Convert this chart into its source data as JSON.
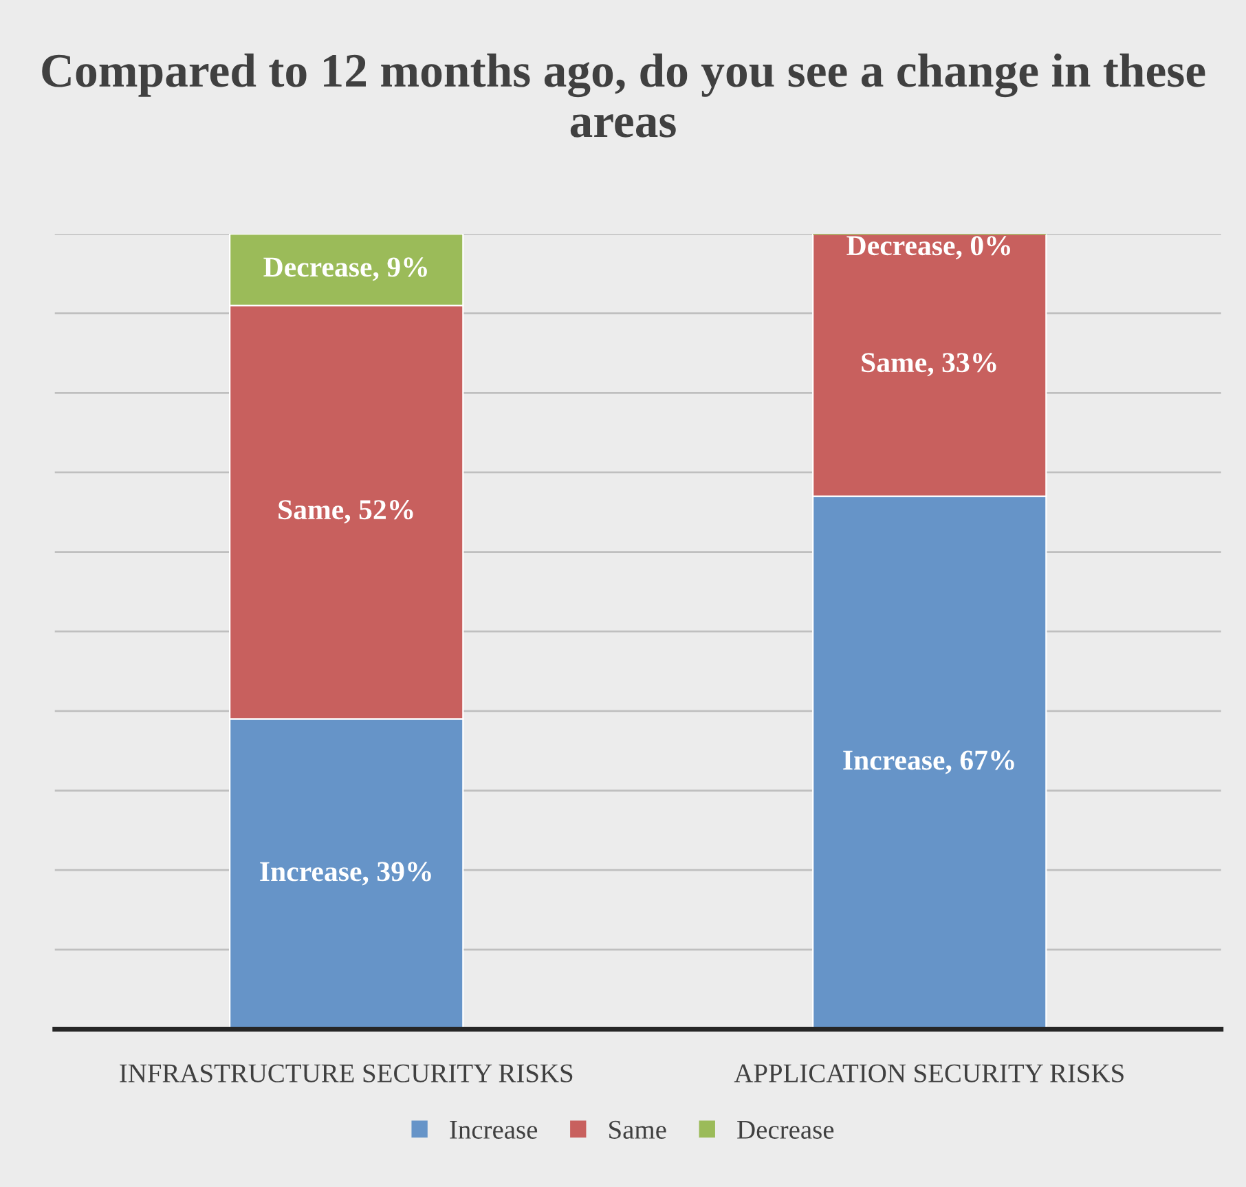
{
  "chart_data": {
    "type": "bar",
    "stacked": true,
    "title": "Compared to 12 months ago, do you see a change in these areas",
    "categories": [
      "INFRASTRUCTURE SECURITY RISKS",
      "APPLICATION SECURITY RISKS"
    ],
    "series": [
      {
        "name": "Increase",
        "color": "#6694c8",
        "values": [
          39,
          67
        ],
        "value_labels": [
          "Increase, 39%",
          "Increase, 67%"
        ]
      },
      {
        "name": "Same",
        "color": "#c8605e",
        "values": [
          52,
          33
        ],
        "value_labels": [
          "Same, 52%",
          "Same, 33%"
        ]
      },
      {
        "name": "Decrease",
        "color": "#9bbb59",
        "values": [
          9,
          0
        ],
        "value_labels": [
          "Decrease, 9%",
          "Decrease, 0%"
        ]
      }
    ],
    "ylim": [
      0,
      100
    ],
    "yticks": [
      {
        "value": 0,
        "label": null
      },
      {
        "value": 10,
        "label": null
      },
      {
        "value": 20,
        "label": null
      },
      {
        "value": 30,
        "label": null
      },
      {
        "value": 40,
        "label": null
      },
      {
        "value": 50,
        "label": null
      },
      {
        "value": 60,
        "label": null
      },
      {
        "value": 70,
        "label": null
      },
      {
        "value": 80,
        "label": null
      },
      {
        "value": 90,
        "label": null
      },
      {
        "value": 100,
        "label": null
      }
    ],
    "tick_labels": "x",
    "grid": "y",
    "legend": "bottom"
  }
}
